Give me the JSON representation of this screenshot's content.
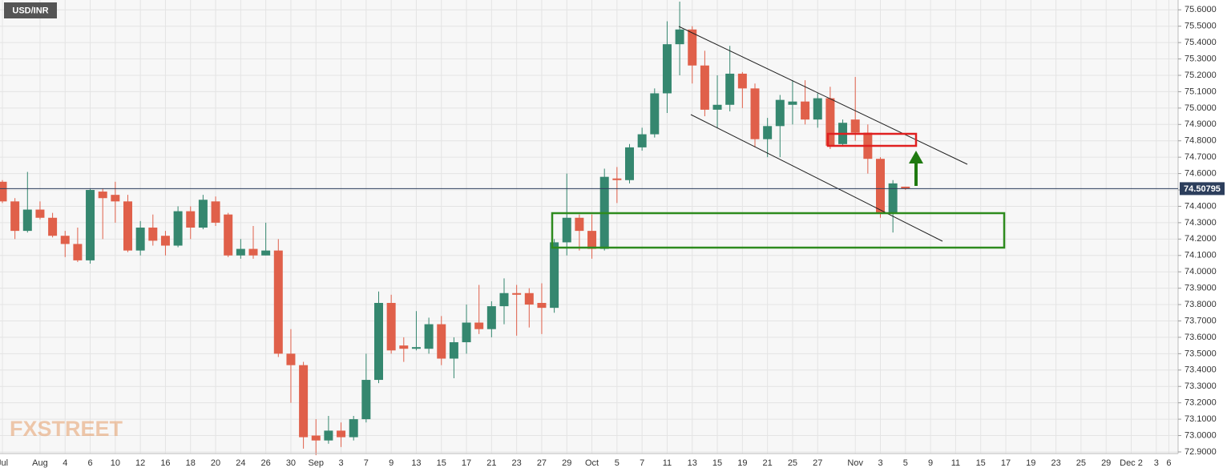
{
  "chart_data": {
    "type": "candlestick",
    "title": "USD/INR",
    "watermark": "FXSTREET",
    "current_price": 74.50795,
    "up_color": "#35876f",
    "down_color": "#e0604a",
    "grid": true,
    "ylim": [
      72.89,
      75.66
    ],
    "yticks": [
      {
        "value": 72.9,
        "label": "72.9000"
      },
      {
        "value": 73.0,
        "label": "73.0000"
      },
      {
        "value": 73.1,
        "label": "73.1000"
      },
      {
        "value": 73.2,
        "label": "73.2000"
      },
      {
        "value": 73.3,
        "label": "73.3000"
      },
      {
        "value": 73.4,
        "label": "73.4000"
      },
      {
        "value": 73.5,
        "label": "73.5000"
      },
      {
        "value": 73.6,
        "label": "73.6000"
      },
      {
        "value": 73.7,
        "label": "73.7000"
      },
      {
        "value": 73.8,
        "label": "73.8000"
      },
      {
        "value": 73.9,
        "label": "73.9000"
      },
      {
        "value": 74.0,
        "label": "74.0000"
      },
      {
        "value": 74.1,
        "label": "74.1000"
      },
      {
        "value": 74.2,
        "label": "74.2000"
      },
      {
        "value": 74.3,
        "label": "74.3000"
      },
      {
        "value": 74.4,
        "label": "74.4000"
      },
      {
        "value": 74.5,
        "label": "74.5000"
      },
      {
        "value": 74.6,
        "label": "74.6000"
      },
      {
        "value": 74.7,
        "label": "74.7000"
      },
      {
        "value": 74.8,
        "label": "74.8000"
      },
      {
        "value": 74.9,
        "label": "74.9000"
      },
      {
        "value": 75.0,
        "label": "75.0000"
      },
      {
        "value": 75.1,
        "label": "75.1000"
      },
      {
        "value": 75.2,
        "label": "75.2000"
      },
      {
        "value": 75.3,
        "label": "75.3000"
      },
      {
        "value": 75.4,
        "label": "75.4000"
      },
      {
        "value": 75.5,
        "label": "75.5000"
      },
      {
        "value": 75.6,
        "label": "75.6000"
      }
    ],
    "categories": [
      "Jul",
      null,
      null,
      "Aug",
      null,
      "4",
      null,
      "6",
      null,
      "10",
      null,
      "12",
      null,
      "16",
      null,
      "18",
      null,
      "20",
      null,
      "24",
      null,
      "26",
      null,
      "30",
      null,
      "Sep",
      null,
      "3",
      null,
      "7",
      null,
      "9",
      null,
      "13",
      null,
      "15",
      null,
      "17",
      null,
      "21",
      null,
      "23",
      null,
      "27",
      null,
      "29",
      null,
      "Oct",
      null,
      "5",
      null,
      "7",
      null,
      "11",
      null,
      "13",
      null,
      "15",
      null,
      "19",
      null,
      "21",
      null,
      "25",
      null,
      "27",
      null,
      null,
      "Nov",
      null,
      "3",
      null,
      "5",
      null,
      "9",
      null,
      "11",
      null,
      "15",
      null,
      "17",
      null,
      "19",
      null,
      "23",
      null,
      "25",
      null,
      "29",
      null,
      "Dec 2",
      null,
      "3",
      "6"
    ],
    "open": [
      74.55,
      74.43,
      74.25,
      74.38,
      74.33,
      74.22,
      74.17,
      74.07,
      74.49,
      74.47,
      74.43,
      74.13,
      74.27,
      74.22,
      74.16,
      74.37,
      74.27,
      74.43,
      74.35,
      74.1,
      74.14,
      74.1,
      74.13,
      73.5,
      73.43,
      73.0,
      72.97,
      73.03,
      72.99,
      73.1,
      73.34,
      73.81,
      73.55,
      73.53,
      73.53,
      73.68,
      73.47,
      73.57,
      73.69,
      73.65,
      73.79,
      73.87,
      73.87,
      73.81,
      73.78,
      74.18,
      74.33,
      74.25,
      74.14,
      74.57,
      74.56,
      74.76,
      74.84,
      75.09,
      75.39,
      75.48,
      75.26,
      74.99,
      75.02,
      75.21,
      75.12,
      74.81,
      74.89,
      75.02,
      75.04,
      74.93,
      75.06,
      74.78,
      74.93,
      74.85,
      74.69,
      74.36,
      74.52,
      null,
      null,
      null,
      null,
      null,
      null,
      null,
      null,
      null,
      null,
      null,
      null,
      null,
      null,
      null,
      null,
      null,
      null,
      null,
      null,
      null
    ],
    "high": [
      74.56,
      74.45,
      74.61,
      74.43,
      74.36,
      74.25,
      74.27,
      74.51,
      74.51,
      74.55,
      74.47,
      74.31,
      74.35,
      74.25,
      74.4,
      74.4,
      74.47,
      74.46,
      74.36,
      74.2,
      74.28,
      74.3,
      74.2,
      73.65,
      73.45,
      73.1,
      73.12,
      73.08,
      73.12,
      73.5,
      73.88,
      73.86,
      73.6,
      73.76,
      73.72,
      73.73,
      73.6,
      73.8,
      73.92,
      73.82,
      73.96,
      73.92,
      73.9,
      73.93,
      74.2,
      74.6,
      74.35,
      74.35,
      74.63,
      74.64,
      74.78,
      74.88,
      75.12,
      75.53,
      75.65,
      75.5,
      75.35,
      75.2,
      75.38,
      75.22,
      75.15,
      74.94,
      75.08,
      75.17,
      75.17,
      75.09,
      75.13,
      74.93,
      75.19,
      74.9,
      74.7,
      74.56,
      74.52,
      null,
      null,
      null,
      null,
      null,
      null,
      null,
      null,
      null,
      null,
      null,
      null,
      null,
      null,
      null,
      null,
      null,
      null,
      null,
      null,
      null
    ],
    "low": [
      74.42,
      74.2,
      74.24,
      74.32,
      74.21,
      74.09,
      74.06,
      74.05,
      74.2,
      74.3,
      74.12,
      74.1,
      74.16,
      74.1,
      74.15,
      74.2,
      74.26,
      74.28,
      74.09,
      74.08,
      74.08,
      74.1,
      73.48,
      73.2,
      72.92,
      72.88,
      72.95,
      72.93,
      72.97,
      73.08,
      73.32,
      73.5,
      73.45,
      73.52,
      73.5,
      73.43,
      73.35,
      73.5,
      73.62,
      73.6,
      73.68,
      73.61,
      73.66,
      73.62,
      73.75,
      74.1,
      74.13,
      74.08,
      74.13,
      74.42,
      74.54,
      74.74,
      74.82,
      74.97,
      75.2,
      75.15,
      74.95,
      74.88,
      74.98,
      75.0,
      74.76,
      74.7,
      74.7,
      74.9,
      74.9,
      74.88,
      74.75,
      74.77,
      74.8,
      74.6,
      74.33,
      74.24,
      74.5,
      null,
      null,
      null,
      null,
      null,
      null,
      null,
      null,
      null,
      null,
      null,
      null,
      null,
      null,
      null,
      null,
      null,
      null,
      null,
      null,
      null
    ],
    "close": [
      74.43,
      74.25,
      74.38,
      74.33,
      74.22,
      74.17,
      74.07,
      74.5,
      74.45,
      74.43,
      74.13,
      74.27,
      74.19,
      74.16,
      74.37,
      74.27,
      74.44,
      74.3,
      74.1,
      74.14,
      74.1,
      74.13,
      73.5,
      73.43,
      72.99,
      72.97,
      73.03,
      72.99,
      73.1,
      73.34,
      73.81,
      73.52,
      73.53,
      73.54,
      73.68,
      73.47,
      73.57,
      73.69,
      73.65,
      73.79,
      73.87,
      73.86,
      73.8,
      73.78,
      74.18,
      74.33,
      74.25,
      74.14,
      74.58,
      74.56,
      74.76,
      74.84,
      75.09,
      75.39,
      75.48,
      75.26,
      74.99,
      75.02,
      75.21,
      75.12,
      74.81,
      74.89,
      75.05,
      75.04,
      74.93,
      75.06,
      74.77,
      74.91,
      74.85,
      74.69,
      74.36,
      74.54,
      74.51,
      null,
      null,
      null,
      null,
      null,
      null,
      null,
      null,
      null,
      null,
      null,
      null,
      null,
      null,
      null,
      null,
      null,
      null,
      null,
      null,
      null
    ]
  }
}
